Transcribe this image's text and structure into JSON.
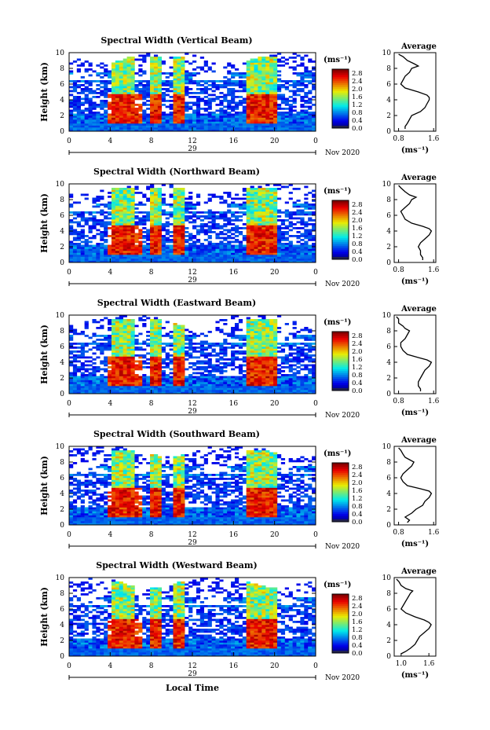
{
  "page": {
    "xlabel": "Local Time"
  },
  "chart_data": [
    {
      "type": "heatmap",
      "title": "Spectral Width (Vertical Beam)",
      "ylabel": "Height (km)",
      "xlabel": "",
      "xlim": [
        0,
        24
      ],
      "ylim": [
        0,
        10
      ],
      "xticks": [
        "0",
        "4",
        "8",
        "12",
        "16",
        "20",
        "0"
      ],
      "yticks": [
        "0",
        "2",
        "4",
        "6",
        "8",
        "10"
      ],
      "day_label": "29",
      "month_label": "Nov 2020",
      "colorbar": {
        "unit": "(ms⁻¹)",
        "range": [
          0,
          3
        ],
        "ticks": [
          "0.0",
          "0.4",
          "0.8",
          "1.2",
          "1.6",
          "2.0",
          "2.4",
          "2.8"
        ]
      },
      "average_profile": {
        "title": "Average",
        "xlabel": "(ms⁻¹)",
        "xticks": [
          "0.8",
          "1.6"
        ],
        "xlim": [
          0.7,
          1.65
        ],
        "ylim": [
          0,
          10
        ],
        "heights_km": [
          0.3,
          0.6,
          1.0,
          1.5,
          2.0,
          2.5,
          3.0,
          3.5,
          4.0,
          4.3,
          4.6,
          5.0,
          5.5,
          6.0,
          6.5,
          7.0,
          7.5,
          8.0,
          8.3,
          8.6,
          9.0,
          9.5,
          9.8
        ],
        "values": [
          0.95,
          0.95,
          1.0,
          1.05,
          1.1,
          1.3,
          1.4,
          1.45,
          1.5,
          1.5,
          1.45,
          1.25,
          0.95,
          0.85,
          0.9,
          0.95,
          1.05,
          1.1,
          1.25,
          1.15,
          1.0,
          0.9,
          0.8
        ]
      }
    },
    {
      "type": "heatmap",
      "title": "Spectral Width (Northward Beam)",
      "ylabel": "Height (km)",
      "xlabel": "",
      "xlim": [
        0,
        24
      ],
      "ylim": [
        0,
        10
      ],
      "xticks": [
        "0",
        "4",
        "8",
        "12",
        "16",
        "20",
        "0"
      ],
      "yticks": [
        "0",
        "2",
        "4",
        "6",
        "8",
        "10"
      ],
      "day_label": "29",
      "month_label": "Nov 2020",
      "colorbar": {
        "unit": "(ms⁻¹)",
        "range": [
          0,
          3
        ],
        "ticks": [
          "0.0",
          "0.4",
          "0.8",
          "1.2",
          "1.6",
          "2.0",
          "2.4",
          "2.8"
        ]
      },
      "average_profile": {
        "title": "Average",
        "xlabel": "(ms⁻¹)",
        "xticks": [
          "0.8",
          "1.6"
        ],
        "xlim": [
          0.7,
          1.65
        ],
        "ylim": [
          0,
          10
        ],
        "heights_km": [
          0.3,
          0.6,
          1.0,
          1.5,
          2.0,
          2.5,
          3.0,
          3.5,
          4.0,
          4.3,
          4.6,
          5.0,
          5.5,
          6.0,
          6.5,
          7.0,
          7.5,
          8.0,
          8.3,
          8.6,
          9.0,
          9.5,
          9.8
        ],
        "values": [
          1.35,
          1.35,
          1.3,
          1.3,
          1.25,
          1.3,
          1.4,
          1.5,
          1.55,
          1.5,
          1.35,
          1.1,
          0.95,
          0.9,
          0.85,
          0.95,
          1.05,
          1.1,
          1.2,
          1.05,
          0.95,
          0.85,
          0.8
        ]
      }
    },
    {
      "type": "heatmap",
      "title": "Spectral Width (Eastward Beam)",
      "ylabel": "Height (km)",
      "xlabel": "",
      "xlim": [
        0,
        24
      ],
      "ylim": [
        0,
        10
      ],
      "xticks": [
        "0",
        "4",
        "8",
        "12",
        "16",
        "20",
        "0"
      ],
      "yticks": [
        "0",
        "2",
        "4",
        "6",
        "8",
        "10"
      ],
      "day_label": "29",
      "month_label": "Nov 2020",
      "colorbar": {
        "unit": "(ms⁻¹)",
        "range": [
          0,
          3
        ],
        "ticks": [
          "0.0",
          "0.4",
          "0.8",
          "1.2",
          "1.6",
          "2.0",
          "2.4",
          "2.8"
        ]
      },
      "average_profile": {
        "title": "Average",
        "xlabel": "(ms⁻¹)",
        "xticks": [
          "0.8",
          "1.6"
        ],
        "xlim": [
          0.7,
          1.65
        ],
        "ylim": [
          0,
          10
        ],
        "heights_km": [
          0.3,
          0.6,
          1.0,
          1.5,
          2.0,
          2.5,
          3.0,
          3.5,
          4.0,
          4.3,
          4.6,
          5.0,
          5.5,
          6.0,
          6.5,
          7.0,
          7.5,
          8.0,
          8.3,
          8.6,
          9.0,
          9.5,
          9.8
        ],
        "values": [
          1.3,
          1.3,
          1.25,
          1.25,
          1.3,
          1.35,
          1.4,
          1.5,
          1.55,
          1.45,
          1.25,
          1.0,
          0.9,
          0.85,
          0.85,
          0.95,
          1.0,
          1.05,
          0.95,
          0.9,
          0.8,
          0.8,
          0.75
        ]
      }
    },
    {
      "type": "heatmap",
      "title": "Spectral Width (Southward Beam)",
      "ylabel": "Height (km)",
      "xlabel": "",
      "xlim": [
        0,
        24
      ],
      "ylim": [
        0,
        10
      ],
      "xticks": [
        "0",
        "4",
        "8",
        "12",
        "16",
        "20",
        "0"
      ],
      "yticks": [
        "0",
        "2",
        "4",
        "6",
        "8",
        "10"
      ],
      "day_label": "29",
      "month_label": "Nov 2020",
      "colorbar": {
        "unit": "(ms⁻¹)",
        "range": [
          0,
          3
        ],
        "ticks": [
          "0.0",
          "0.4",
          "0.8",
          "1.2",
          "1.6",
          "2.0",
          "2.4",
          "2.8"
        ]
      },
      "average_profile": {
        "title": "Average",
        "xlabel": "(ms⁻¹)",
        "xticks": [
          "0.8",
          "1.6"
        ],
        "xlim": [
          0.7,
          1.65
        ],
        "ylim": [
          0,
          10
        ],
        "heights_km": [
          0.3,
          0.6,
          1.0,
          1.5,
          2.0,
          2.5,
          3.0,
          3.5,
          4.0,
          4.3,
          4.6,
          5.0,
          5.5,
          6.0,
          6.5,
          7.0,
          7.5,
          8.0,
          8.3,
          8.6,
          9.0,
          9.5,
          9.8
        ],
        "values": [
          1.0,
          1.05,
          0.95,
          1.1,
          1.2,
          1.35,
          1.4,
          1.5,
          1.55,
          1.5,
          1.3,
          1.0,
          0.9,
          0.85,
          0.9,
          1.0,
          1.1,
          1.15,
          1.05,
          0.95,
          0.9,
          0.85,
          0.8
        ]
      }
    },
    {
      "type": "heatmap",
      "title": "Spectral Width (Westward Beam)",
      "ylabel": "Height (km)",
      "xlabel": "",
      "xlim": [
        0,
        24
      ],
      "ylim": [
        0,
        10
      ],
      "xticks": [
        "0",
        "4",
        "8",
        "12",
        "16",
        "20",
        "0"
      ],
      "yticks": [
        "0",
        "2",
        "4",
        "6",
        "8",
        "10"
      ],
      "day_label": "29",
      "month_label": "Nov 2020",
      "colorbar": {
        "unit": "(ms⁻¹)",
        "range": [
          0,
          3
        ],
        "ticks": [
          "0.0",
          "0.4",
          "0.8",
          "1.2",
          "1.6",
          "2.0",
          "2.4",
          "2.8"
        ]
      },
      "average_profile": {
        "title": "Average",
        "xlabel": "(ms⁻¹)",
        "xticks": [
          "1.0",
          "1.6"
        ],
        "xlim": [
          0.85,
          1.75
        ],
        "ylim": [
          0,
          10
        ],
        "heights_km": [
          0.3,
          0.6,
          1.0,
          1.5,
          2.0,
          2.5,
          3.0,
          3.5,
          4.0,
          4.3,
          4.6,
          5.0,
          5.5,
          6.0,
          6.5,
          7.0,
          7.5,
          8.0,
          8.3,
          8.6,
          9.0,
          9.5,
          9.8
        ],
        "values": [
          1.0,
          1.1,
          1.2,
          1.3,
          1.35,
          1.4,
          1.5,
          1.6,
          1.65,
          1.6,
          1.5,
          1.3,
          1.1,
          1.0,
          1.05,
          1.1,
          1.15,
          1.2,
          1.25,
          1.1,
          1.0,
          0.95,
          0.9
        ]
      }
    }
  ]
}
